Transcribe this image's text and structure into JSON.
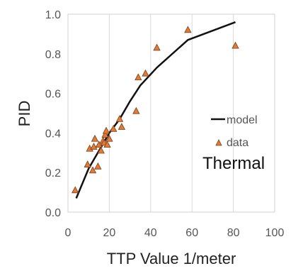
{
  "chart_data": {
    "type": "scatter",
    "xlabel": "TTP Value 1/meter",
    "ylabel": "PID",
    "xlim": [
      0,
      100
    ],
    "ylim": [
      0,
      1.0
    ],
    "x_ticks": [
      "0",
      "20",
      "40",
      "60",
      "80",
      "100"
    ],
    "y_ticks": [
      "0.0",
      "0.2",
      "0.4",
      "0.6",
      "0.8",
      "1.0"
    ],
    "grid": "vertical",
    "legend": "right",
    "annotation": "Thermal",
    "series": [
      {
        "name": "model",
        "type": "line",
        "color": "#111111",
        "points": [
          [
            4,
            0.07
          ],
          [
            10,
            0.22
          ],
          [
            15,
            0.31
          ],
          [
            20,
            0.4
          ],
          [
            25,
            0.47
          ],
          [
            30,
            0.56
          ],
          [
            35,
            0.64
          ],
          [
            43,
            0.73
          ],
          [
            58,
            0.87
          ],
          [
            81,
            0.96
          ]
        ]
      },
      {
        "name": "data",
        "type": "scatter",
        "color": "#E07B39",
        "points": [
          [
            3.5,
            0.11
          ],
          [
            9.5,
            0.24
          ],
          [
            10.5,
            0.32
          ],
          [
            12,
            0.21
          ],
          [
            12.5,
            0.33
          ],
          [
            13,
            0.37
          ],
          [
            14.5,
            0.23
          ],
          [
            15,
            0.34
          ],
          [
            16,
            0.31
          ],
          [
            17,
            0.36
          ],
          [
            17.5,
            0.35
          ],
          [
            18,
            0.39
          ],
          [
            18.5,
            0.41
          ],
          [
            19,
            0.34
          ],
          [
            20,
            0.37
          ],
          [
            22,
            0.42
          ],
          [
            25,
            0.47
          ],
          [
            26,
            0.43
          ],
          [
            33,
            0.51
          ],
          [
            34,
            0.68
          ],
          [
            37.5,
            0.7
          ],
          [
            43,
            0.83
          ],
          [
            58,
            0.92
          ],
          [
            81,
            0.84
          ]
        ]
      }
    ]
  }
}
